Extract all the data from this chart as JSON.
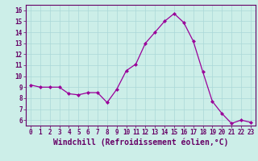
{
  "x": [
    0,
    1,
    2,
    3,
    4,
    5,
    6,
    7,
    8,
    9,
    10,
    11,
    12,
    13,
    14,
    15,
    16,
    17,
    18,
    19,
    20,
    21,
    22,
    23
  ],
  "y": [
    9.2,
    9.0,
    9.0,
    9.0,
    8.4,
    8.3,
    8.5,
    8.5,
    7.6,
    8.8,
    10.5,
    11.1,
    13.0,
    14.0,
    15.0,
    15.7,
    14.9,
    13.2,
    10.4,
    7.7,
    6.6,
    5.7,
    6.0,
    5.8
  ],
  "line_color": "#990099",
  "marker": "D",
  "marker_size": 2.0,
  "xlabel": "Windchill (Refroidissement éolien,°C)",
  "xlabel_fontsize": 7,
  "xtick_labels": [
    "0",
    "1",
    "2",
    "3",
    "4",
    "5",
    "6",
    "7",
    "8",
    "9",
    "10",
    "11",
    "12",
    "13",
    "14",
    "15",
    "16",
    "17",
    "18",
    "19",
    "20",
    "21",
    "22",
    "23"
  ],
  "ytick_vals": [
    6,
    7,
    8,
    9,
    10,
    11,
    12,
    13,
    14,
    15,
    16
  ],
  "ytick_labels": [
    "6",
    "7",
    "8",
    "9",
    "10",
    "11",
    "12",
    "13",
    "14",
    "15",
    "16"
  ],
  "ylim": [
    5.5,
    16.5
  ],
  "xlim": [
    -0.5,
    23.5
  ],
  "bg_color": "#cceee8",
  "grid_color": "#aad8d8",
  "axis_color": "#660066",
  "tick_color": "#660066",
  "label_color": "#660066",
  "tick_fontsize": 5.5,
  "lw": 0.9
}
